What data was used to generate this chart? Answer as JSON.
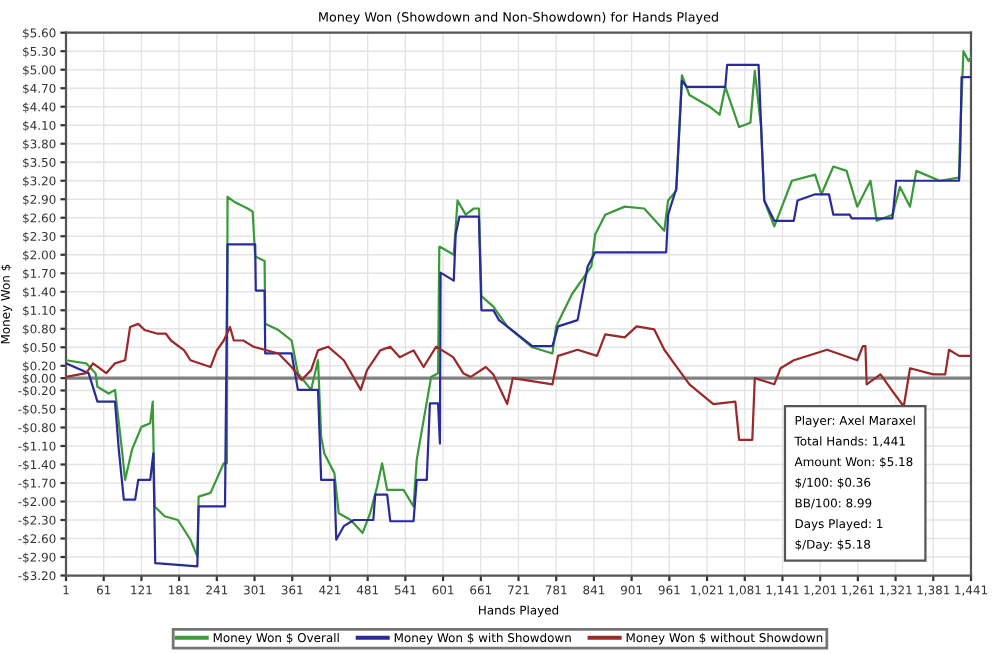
{
  "chart_data": {
    "type": "line",
    "title": "Money Won (Showdown and Non-Showdown) for Hands Played",
    "xlabel": "Hands Played",
    "ylabel": "Money Won $",
    "series": [
      {
        "name": "Money Won $ Overall",
        "color": "#3a9a3a",
        "x": [
          1,
          33,
          48,
          51,
          69,
          79,
          90,
          95,
          106,
          121,
          135,
          139,
          142,
          158,
          179,
          199,
          210,
          212,
          231,
          252,
          257,
          258,
          270,
          290,
          298,
          302,
          317,
          318,
          339,
          360,
          370,
          391,
          402,
          407,
          412,
          428,
          435,
          454,
          473,
          485,
          496,
          504,
          512,
          538,
          554,
          559,
          570,
          582,
          593,
          595,
          596,
          618,
          624,
          637,
          650,
          658,
          662,
          681,
          703,
          743,
          775,
          781,
          806,
          837,
          843,
          859,
          890,
          921,
          953,
          959,
          972,
          981,
          993,
          1025,
          1041,
          1050,
          1072,
          1090,
          1097,
          1107,
          1112,
          1128,
          1156,
          1193,
          1203,
          1222,
          1243,
          1260,
          1281,
          1291,
          1316,
          1328,
          1344,
          1354,
          1391,
          1422,
          1423,
          1429,
          1437,
          1441
        ],
        "values": [
          0.29,
          0.24,
          0.08,
          -0.14,
          -0.25,
          -0.19,
          -1.16,
          -1.65,
          -1.16,
          -0.79,
          -0.73,
          -0.38,
          -2.08,
          -2.24,
          -2.3,
          -2.62,
          -2.89,
          -1.92,
          -1.86,
          -1.38,
          -1.38,
          2.94,
          2.85,
          2.75,
          2.7,
          1.97,
          1.9,
          0.88,
          0.78,
          0.61,
          0.08,
          -0.19,
          0.29,
          -0.95,
          -1.22,
          -1.54,
          -2.19,
          -2.3,
          -2.51,
          -2.19,
          -1.76,
          -1.38,
          -1.81,
          -1.81,
          -2.08,
          -1.33,
          -0.68,
          0.02,
          0.08,
          2.13,
          2.13,
          2.0,
          2.88,
          2.65,
          2.75,
          2.75,
          1.33,
          1.16,
          0.84,
          0.5,
          0.4,
          0.84,
          1.36,
          1.81,
          2.33,
          2.65,
          2.78,
          2.75,
          2.39,
          2.88,
          3.04,
          4.91,
          4.59,
          4.4,
          4.27,
          4.72,
          4.07,
          4.14,
          4.98,
          4.07,
          2.88,
          2.46,
          3.2,
          3.3,
          2.98,
          3.43,
          3.36,
          2.78,
          3.2,
          2.55,
          2.65,
          3.1,
          2.78,
          3.36,
          3.2,
          3.25,
          3.75,
          5.3,
          5.14,
          5.2
        ]
      },
      {
        "name": "Money Won $ with Showdown",
        "color": "#2a2a9a",
        "x": [
          1,
          37,
          51,
          79,
          85,
          93,
          111,
          116,
          135,
          140,
          143,
          210,
          212,
          254,
          258,
          302,
          303,
          317,
          318,
          360,
          370,
          402,
          407,
          428,
          431,
          443,
          459,
          490,
          493,
          512,
          517,
          554,
          559,
          575,
          580,
          593,
          596,
          597,
          618,
          621,
          627,
          658,
          662,
          681,
          690,
          743,
          775,
          784,
          815,
          831,
          843,
          956,
          959,
          972,
          981,
          989,
          1050,
          1053,
          1103,
          1112,
          1128,
          1159,
          1165,
          1193,
          1203,
          1215,
          1222,
          1248,
          1251,
          1316,
          1322,
          1422,
          1424,
          1426,
          1441
        ],
        "values": [
          0.24,
          0.08,
          -0.38,
          -0.38,
          -1.16,
          -1.97,
          -1.97,
          -1.65,
          -1.65,
          -1.22,
          -3.0,
          -3.05,
          -2.08,
          -2.08,
          2.17,
          2.17,
          1.42,
          1.42,
          0.4,
          0.4,
          -0.19,
          -0.19,
          -1.65,
          -1.65,
          -2.62,
          -2.4,
          -2.3,
          -2.3,
          -1.89,
          -1.89,
          -2.32,
          -2.32,
          -1.65,
          -1.65,
          -0.41,
          -0.41,
          -1.06,
          1.71,
          1.58,
          2.33,
          2.62,
          2.62,
          1.1,
          1.1,
          0.94,
          0.52,
          0.52,
          0.84,
          0.94,
          1.81,
          2.04,
          2.04,
          2.65,
          3.07,
          4.82,
          4.72,
          4.72,
          5.08,
          5.08,
          2.88,
          2.55,
          2.55,
          2.88,
          2.98,
          2.98,
          2.98,
          2.65,
          2.65,
          2.59,
          2.59,
          3.2,
          3.2,
          3.72,
          4.88,
          4.88
        ]
      },
      {
        "name": "Money Won $ without Showdown",
        "color": "#9a2a2a",
        "x": [
          1,
          33,
          44,
          65,
          79,
          95,
          103,
          116,
          126,
          147,
          160,
          168,
          189,
          199,
          231,
          241,
          252,
          262,
          268,
          283,
          299,
          339,
          360,
          376,
          391,
          402,
          418,
          443,
          470,
          480,
          501,
          517,
          532,
          554,
          570,
          590,
          617,
          633,
          645,
          669,
          681,
          703,
          712,
          775,
          784,
          815,
          846,
          859,
          890,
          909,
          937,
          953,
          972,
          993,
          1031,
          1066,
          1072,
          1093,
          1097,
          1128,
          1138,
          1159,
          1212,
          1260,
          1269,
          1273,
          1275,
          1297,
          1316,
          1334,
          1344,
          1381,
          1400,
          1406,
          1422,
          1441
        ],
        "values": [
          0.02,
          0.08,
          0.24,
          0.08,
          0.24,
          0.29,
          0.83,
          0.88,
          0.78,
          0.72,
          0.72,
          0.61,
          0.45,
          0.29,
          0.18,
          0.45,
          0.61,
          0.83,
          0.61,
          0.61,
          0.51,
          0.4,
          0.18,
          -0.03,
          0.13,
          0.45,
          0.51,
          0.29,
          -0.19,
          0.13,
          0.45,
          0.51,
          0.34,
          0.45,
          0.18,
          0.51,
          0.34,
          0.08,
          0.02,
          0.18,
          0.06,
          -0.42,
          0.0,
          -0.1,
          0.36,
          0.46,
          0.36,
          0.71,
          0.66,
          0.84,
          0.79,
          0.46,
          0.19,
          -0.1,
          -0.42,
          -0.38,
          -1.0,
          -1.0,
          0.0,
          -0.1,
          0.16,
          0.29,
          0.46,
          0.29,
          0.52,
          0.52,
          -0.1,
          0.06,
          -0.21,
          -0.46,
          0.16,
          0.06,
          0.06,
          0.46,
          0.36,
          0.36
        ]
      }
    ],
    "xlim": [
      1,
      1441
    ],
    "xticks": [
      1,
      61,
      121,
      181,
      241,
      301,
      361,
      421,
      481,
      541,
      601,
      661,
      721,
      781,
      841,
      901,
      961,
      {
        "value": 1021,
        "label": "1,021"
      },
      {
        "value": 1081,
        "label": "1,081"
      },
      {
        "value": 1141,
        "label": "1,141"
      },
      {
        "value": 1201,
        "label": "1,201"
      },
      {
        "value": 1261,
        "label": "1,261"
      },
      {
        "value": 1321,
        "label": "1,321"
      },
      {
        "value": 1381,
        "label": "1,381"
      },
      {
        "value": 1441,
        "label": "1,441"
      }
    ],
    "ylim": [
      -3.2,
      5.6
    ],
    "yticks": [
      {
        "value": -3.2,
        "label": "-$3.20"
      },
      {
        "value": -2.9,
        "label": "-$2.90"
      },
      {
        "value": -2.6,
        "label": "-$2.60"
      },
      {
        "value": -2.3,
        "label": "-$2.30"
      },
      {
        "value": -2.0,
        "label": "-$2.00"
      },
      {
        "value": -1.7,
        "label": "-$1.70"
      },
      {
        "value": -1.4,
        "label": "-$1.40"
      },
      {
        "value": -1.1,
        "label": "-$1.10"
      },
      {
        "value": -0.8,
        "label": "-$0.80"
      },
      {
        "value": -0.5,
        "label": "-$0.50"
      },
      {
        "value": -0.2,
        "label": "-$0.20"
      },
      {
        "value": 0.0,
        "label": "$0.00"
      },
      {
        "value": 0.2,
        "label": "$0.20"
      },
      {
        "value": 0.5,
        "label": "$0.50"
      },
      {
        "value": 0.8,
        "label": "$0.80"
      },
      {
        "value": 1.1,
        "label": "$1.10"
      },
      {
        "value": 1.4,
        "label": "$1.40"
      },
      {
        "value": 1.7,
        "label": "$1.70"
      },
      {
        "value": 2.0,
        "label": "$2.00"
      },
      {
        "value": 2.3,
        "label": "$2.30"
      },
      {
        "value": 2.6,
        "label": "$2.60"
      },
      {
        "value": 2.9,
        "label": "$2.90"
      },
      {
        "value": 3.2,
        "label": "$3.20"
      },
      {
        "value": 3.5,
        "label": "$3.50"
      },
      {
        "value": 3.8,
        "label": "$3.80"
      },
      {
        "value": 4.1,
        "label": "$4.10"
      },
      {
        "value": 4.4,
        "label": "$4.40"
      },
      {
        "value": 4.7,
        "label": "$4.70"
      },
      {
        "value": 5.0,
        "label": "$5.00"
      },
      {
        "value": 5.3,
        "label": "$5.30"
      },
      {
        "value": 5.6,
        "label": "$5.60"
      }
    ],
    "ref_lines": [
      {
        "axis": "y",
        "value": 0,
        "color": "#808080"
      }
    ],
    "annotations": [
      "Player: Axel Maraxel",
      "Total Hands: 1,441",
      "Amount Won: $5.18",
      "$/100: $0.36",
      "BB/100: 8.99",
      "Days Played: 1",
      "$/Day: $5.18"
    ],
    "grid": true,
    "legend": "bottom",
    "marker": "none",
    "line_style": "solid"
  }
}
